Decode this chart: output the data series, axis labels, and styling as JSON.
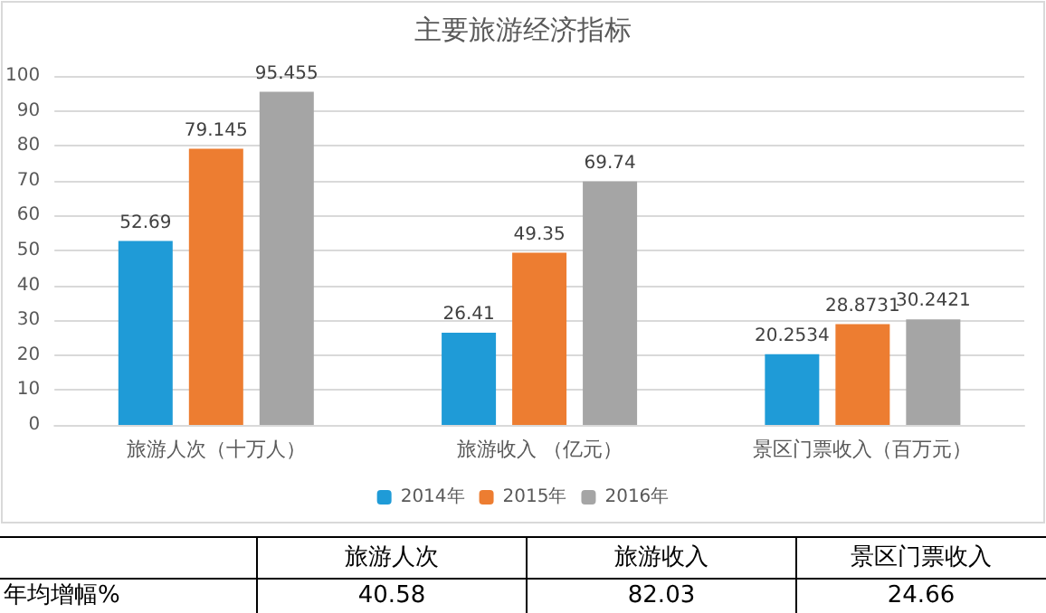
{
  "chart_data": {
    "type": "bar",
    "title": "主要旅游经济指标",
    "categories": [
      "旅游人次（十万人）",
      "旅游收入 （亿元）",
      "景区门票收入（百万元）"
    ],
    "series": [
      {
        "name": "2014年",
        "color": "#1f9bd7",
        "values": [
          52.69,
          26.41,
          20.2534
        ]
      },
      {
        "name": "2015年",
        "color": "#ed7d31",
        "values": [
          79.145,
          49.35,
          28.8731
        ]
      },
      {
        "name": "2016年",
        "color": "#a5a5a5",
        "values": [
          95.455,
          69.74,
          30.2421
        ]
      }
    ],
    "ylim": [
      0,
      100
    ],
    "yticks": [
      0,
      10,
      20,
      30,
      40,
      50,
      60,
      70,
      80,
      90,
      100
    ],
    "grid": "y",
    "legend": "bottom",
    "data_labels": true,
    "annotations": [
      "旅游人次",
      "旅游收入",
      "景区门票收入",
      "年均增幅%",
      "40.58",
      "82.03",
      "24.66"
    ]
  }
}
